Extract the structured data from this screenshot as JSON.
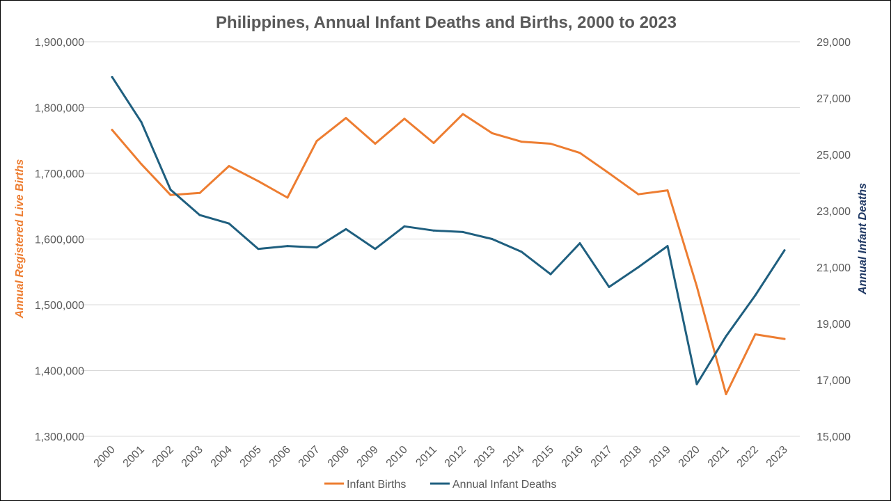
{
  "chart_data": {
    "type": "line",
    "title": "Philippines, Annual Infant Deaths and Births, 2000 to 2023",
    "categories": [
      "2000",
      "2001",
      "2002",
      "2003",
      "2004",
      "2005",
      "2006",
      "2007",
      "2008",
      "2009",
      "2010",
      "2011",
      "2012",
      "2013",
      "2014",
      "2015",
      "2016",
      "2017",
      "2018",
      "2019",
      "2020",
      "2021",
      "2022",
      "2023"
    ],
    "y_left": {
      "label": "Annual Registered Live Births",
      "range": [
        1300000,
        1900000
      ],
      "ticks": [
        "1,300,000",
        "1,400,000",
        "1,500,000",
        "1,600,000",
        "1,700,000",
        "1,800,000",
        "1,900,000"
      ],
      "tick_values": [
        1300000,
        1400000,
        1500000,
        1600000,
        1700000,
        1800000,
        1900000
      ],
      "color": "#ED7D31"
    },
    "y_right": {
      "label": "Annual Infant Deaths",
      "range": [
        15000,
        29000
      ],
      "ticks": [
        "15,000",
        "17,000",
        "19,000",
        "21,000",
        "23,000",
        "25,000",
        "27,000",
        "29,000"
      ],
      "tick_values": [
        15000,
        17000,
        19000,
        21000,
        23000,
        25000,
        27000,
        29000
      ],
      "color": "#1F3864"
    },
    "grid": true,
    "legend_position": "bottom",
    "series": [
      {
        "name": "Infant Births",
        "axis": "left",
        "color": "#ED7D31",
        "values": [
          1766000,
          1714000,
          1667000,
          1670000,
          1711000,
          1688000,
          1663000,
          1749000,
          1784000,
          1745000,
          1783000,
          1746000,
          1790000,
          1761000,
          1748000,
          1745000,
          1731000,
          1700000,
          1668000,
          1674000,
          1528000,
          1364000,
          1455000,
          1448000
        ]
      },
      {
        "name": "Annual Infant Deaths",
        "axis": "right",
        "color": "#1F5F7F",
        "values": [
          27750,
          26150,
          23750,
          22850,
          22550,
          21650,
          21750,
          21700,
          22350,
          21650,
          22450,
          22300,
          22250,
          22000,
          21550,
          20750,
          21850,
          20300,
          21000,
          21750,
          16850,
          18550,
          20000,
          21600
        ]
      }
    ]
  }
}
